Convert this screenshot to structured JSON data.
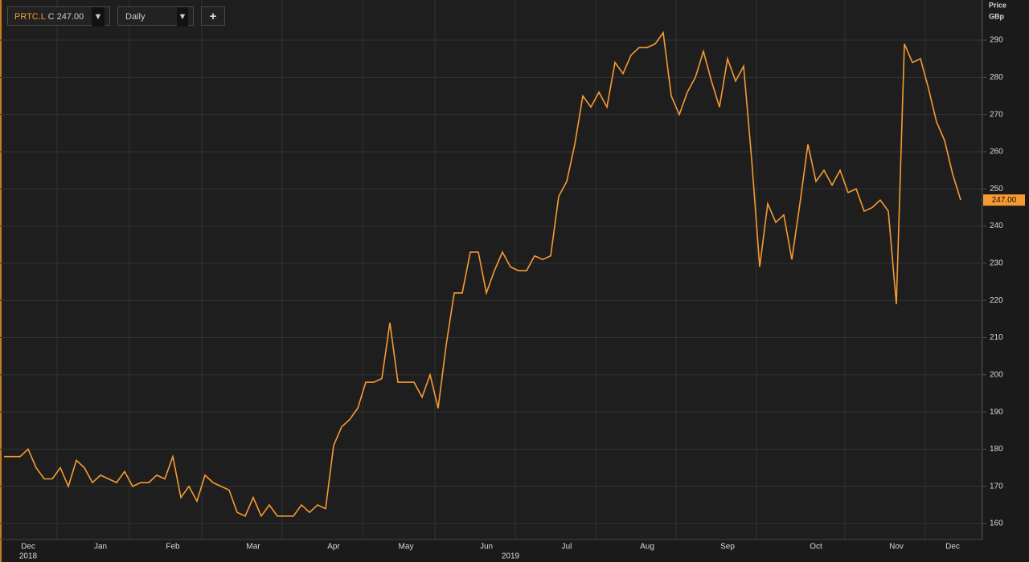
{
  "toolbar": {
    "symbol": "PRTC.L",
    "close": "C 247.00",
    "interval": "Daily",
    "add": "+"
  },
  "chart_data": {
    "type": "line",
    "y_axis_label": "Price",
    "y_axis_unit": "GBp",
    "last_price_label": "247.00",
    "categories": [
      null,
      null,
      null,
      "Dec",
      null,
      null,
      null,
      null,
      null,
      null,
      null,
      null,
      "Jan",
      null,
      null,
      null,
      null,
      null,
      null,
      null,
      null,
      "Feb",
      null,
      null,
      null,
      null,
      null,
      null,
      null,
      null,
      null,
      "Mar",
      null,
      null,
      null,
      null,
      null,
      null,
      null,
      null,
      null,
      "Apr",
      null,
      null,
      null,
      null,
      null,
      null,
      null,
      null,
      "May",
      null,
      null,
      null,
      null,
      null,
      null,
      null,
      null,
      null,
      "Jun",
      null,
      null,
      null,
      null,
      null,
      null,
      null,
      null,
      null,
      "Jul",
      null,
      null,
      null,
      null,
      null,
      null,
      null,
      null,
      null,
      "Aug",
      null,
      null,
      null,
      null,
      null,
      null,
      null,
      null,
      null,
      "Sep",
      null,
      null,
      null,
      null,
      null,
      null,
      null,
      null,
      null,
      null,
      "Oct",
      null,
      null,
      null,
      null,
      null,
      null,
      null,
      null,
      null,
      "Nov",
      null,
      null,
      null,
      null,
      null,
      null,
      "Dec",
      null
    ],
    "category_years": [
      null,
      null,
      null,
      "2018",
      null,
      null,
      null,
      null,
      null,
      null,
      null,
      null,
      null,
      null,
      null,
      null,
      null,
      null,
      null,
      null,
      null,
      null,
      null,
      null,
      null,
      null,
      null,
      null,
      null,
      null,
      null,
      null,
      null,
      null,
      null,
      null,
      null,
      null,
      null,
      null,
      null,
      null,
      null,
      null,
      null,
      null,
      null,
      null,
      null,
      null,
      null,
      null,
      null,
      null,
      null,
      null,
      null,
      null,
      null,
      null,
      null,
      null,
      null,
      "2019",
      null,
      null,
      null,
      null,
      null,
      null,
      null,
      null,
      null,
      null,
      null,
      null,
      null,
      null,
      null,
      null,
      null,
      null,
      null,
      null,
      null,
      null,
      null,
      null,
      null,
      null,
      null,
      null,
      null,
      null,
      null,
      null,
      null,
      null,
      null,
      null,
      null,
      null,
      null,
      null,
      null,
      null,
      null,
      null,
      null,
      null,
      null,
      null,
      null,
      null,
      null,
      null,
      null,
      null,
      null,
      null
    ],
    "series": [
      {
        "name": "PRTC.L",
        "color": "#f79a32",
        "values": [
          178,
          178,
          178,
          180,
          175,
          172,
          172,
          175,
          170,
          177,
          175,
          171,
          173,
          172,
          171,
          174,
          170,
          171,
          171,
          173,
          172,
          178,
          167,
          170,
          166,
          173,
          171,
          170,
          169,
          163,
          162,
          167,
          162,
          165,
          162,
          162,
          162,
          165,
          163,
          165,
          164,
          181,
          186,
          188,
          191,
          198,
          198,
          199,
          214,
          198,
          198,
          198,
          194,
          200,
          191,
          208,
          222,
          222,
          233,
          233,
          222,
          228,
          233,
          229,
          228,
          228,
          232,
          231,
          232,
          248,
          252,
          262,
          275,
          272,
          276,
          272,
          284,
          281,
          286,
          288,
          288,
          289,
          292,
          275,
          270,
          276,
          280,
          287,
          279,
          272,
          285,
          279,
          283,
          258,
          229,
          246,
          241,
          243,
          231,
          246,
          262,
          252,
          255,
          251,
          255,
          249,
          250,
          244,
          245,
          247,
          244,
          219,
          289,
          284,
          285,
          277,
          268,
          263,
          254,
          247
        ]
      }
    ],
    "ylim": [
      155.7,
      300.8
    ],
    "yticks": [
      160,
      170,
      180,
      190,
      200,
      210,
      220,
      230,
      240,
      250,
      260,
      270,
      280,
      290
    ],
    "grid": true
  }
}
